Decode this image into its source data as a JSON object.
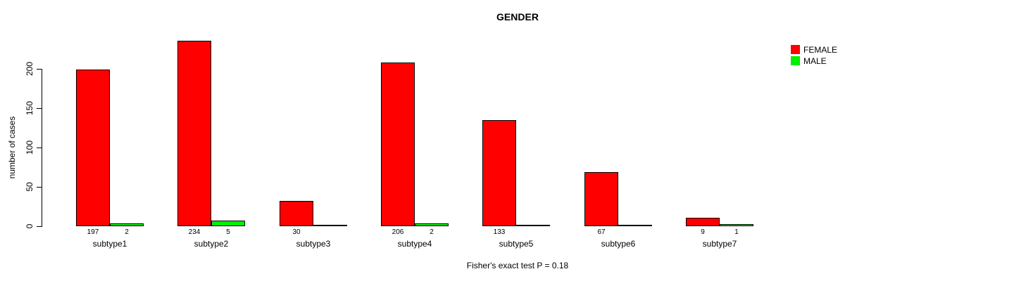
{
  "chart_data": {
    "type": "bar",
    "title": "GENDER",
    "xlabel": "",
    "ylabel": "number of cases",
    "categories": [
      "subtype1",
      "subtype2",
      "subtype3",
      "subtype4",
      "subtype5",
      "subtype6",
      "subtype7"
    ],
    "series": [
      {
        "name": "FEMALE",
        "color": "#FF0000",
        "values": [
          197,
          234,
          30,
          206,
          133,
          67,
          9
        ]
      },
      {
        "name": "MALE",
        "color": "#00EE00",
        "values": [
          2,
          5,
          0,
          2,
          0,
          0,
          1
        ]
      }
    ],
    "yticks": [
      0,
      50,
      100,
      150,
      200
    ],
    "ylim": [
      0,
      235
    ],
    "grid": false,
    "legend_position": "top-right",
    "bar_value_labels_shown_when_positive": true,
    "annotation": "Fisher's exact test P = 0.18"
  }
}
